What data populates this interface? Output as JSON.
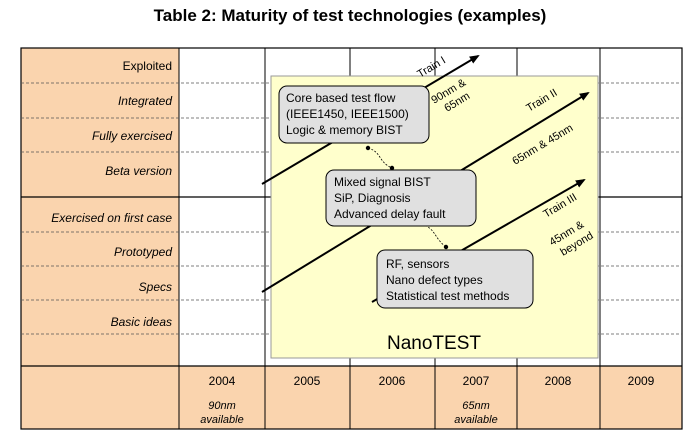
{
  "title": "Table 2: Maturity of test technologies (examples)",
  "rows": [
    "Exploited",
    "Integrated",
    "Fully exercised",
    "Beta version",
    "Exercised on first case",
    "Prototyped",
    "Specs",
    "Basic ideas"
  ],
  "years": [
    "2004",
    "2005",
    "2006",
    "2007",
    "2008",
    "2009"
  ],
  "year_notes": {
    "2004": [
      "90nm",
      "available"
    ],
    "2007": [
      "65nm",
      "available"
    ]
  },
  "boxes": {
    "core": [
      "Core based test flow",
      "(IEEE1450, IEEE1500)",
      "Logic & memory BIST"
    ],
    "mixed": [
      "Mixed signal BIST",
      "SiP, Diagnosis",
      "Advanced delay fault"
    ],
    "rf": [
      "RF, sensors",
      "Nano defect types",
      "Statistical test methods"
    ]
  },
  "trains": {
    "t1": {
      "name": "Train I",
      "node": [
        "90nm &",
        "65nm"
      ]
    },
    "t2": {
      "name": "Train II",
      "node": [
        "65nm & 45nm"
      ]
    },
    "t3": {
      "name": "Train III",
      "node": [
        "45nm &",
        "beyond"
      ]
    }
  },
  "project_label": "NanoTEST",
  "colors": {
    "label_fill": "#fad4ae",
    "project_fill": "#ffffcc",
    "box_fill": "#e0e0e0",
    "grid": "#000000"
  }
}
